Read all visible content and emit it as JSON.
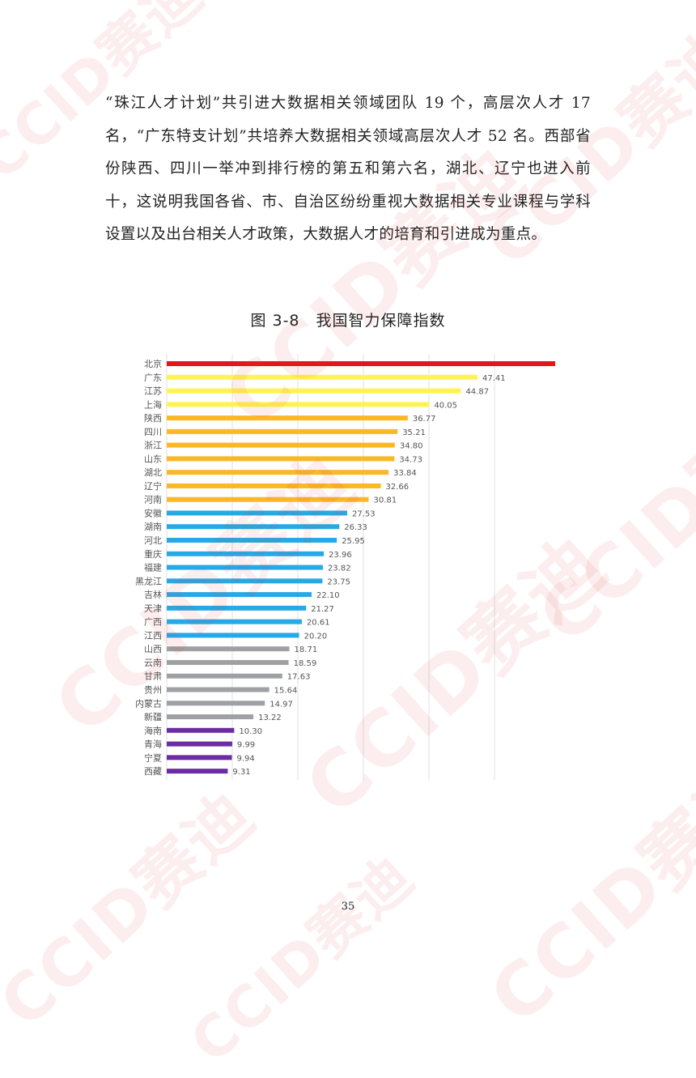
{
  "document": {
    "paragraph": "“珠江人才计划”共引进大数据相关领域团队 19 个，高层次人才 17 名，“广东特支计划”共培养大数据相关领域高层次人才 52 名。西部省份陕西、四川一举冲到排行榜的第五和第六名，湖北、辽宁也进入前十，这说明我国各省、市、自治区纷纷重视大数据相关专业课程与学科设置以及出台相关人才政策，大数据人才的培育和引进成为重点。",
    "figure_caption": "图 3-8　我国智力保障指数",
    "page_number": "35",
    "watermark_text": "CCID赛迪"
  },
  "chart_data": {
    "type": "bar",
    "orientation": "horizontal",
    "title": "",
    "xlabel": "",
    "ylabel": "",
    "xlim": [
      0,
      75
    ],
    "grid": true,
    "legend": "none",
    "categories": [
      "北京",
      "广东",
      "江苏",
      "上海",
      "陕西",
      "四川",
      "浙江",
      "山东",
      "湖北",
      "辽宁",
      "河南",
      "安徽",
      "湖南",
      "河北",
      "重庆",
      "福建",
      "黑龙江",
      "吉林",
      "天津",
      "广西",
      "江西",
      "山西",
      "云南",
      "甘肃",
      "贵州",
      "内蒙古",
      "新疆",
      "海南",
      "青海",
      "宁夏",
      "西藏"
    ],
    "values": [
      60.73,
      47.41,
      44.87,
      40.05,
      36.77,
      35.21,
      34.8,
      34.73,
      33.84,
      32.66,
      30.81,
      27.53,
      26.33,
      25.95,
      23.96,
      23.82,
      23.75,
      22.1,
      21.27,
      20.61,
      20.2,
      18.71,
      18.59,
      17.63,
      15.64,
      14.97,
      13.22,
      10.3,
      9.99,
      9.94,
      9.31
    ],
    "labels": [
      "60.73",
      "47.41",
      "44.87",
      "40.05",
      "36.77",
      "35.21",
      "34.80",
      "34.73",
      "33.84",
      "32.66",
      "30.81",
      "27.53",
      "26.33",
      "25.95",
      "23.96",
      "23.82",
      "23.75",
      "22.10",
      "21.27",
      "20.61",
      "20.20",
      "18.71",
      "18.59",
      "17.63",
      "15.64",
      "14.97",
      "13.22",
      "10.30",
      "9.99",
      "9.94",
      "9.31"
    ],
    "colors": [
      "#e8131b",
      "#fff44f",
      "#fff44f",
      "#fff44f",
      "#fbb724",
      "#fbb724",
      "#fbb724",
      "#fbb724",
      "#fbb724",
      "#fbb724",
      "#fbb724",
      "#27a9e6",
      "#27a9e6",
      "#27a9e6",
      "#27a9e6",
      "#27a9e6",
      "#27a9e6",
      "#27a9e6",
      "#27a9e6",
      "#27a9e6",
      "#27a9e6",
      "#9ea0a3",
      "#9ea0a3",
      "#9ea0a3",
      "#9ea0a3",
      "#9ea0a3",
      "#9ea0a3",
      "#6c2da3",
      "#6c2da3",
      "#6c2da3",
      "#6c2da3"
    ],
    "gridline_color": "#e2e2e2",
    "label_color": "#555555"
  }
}
